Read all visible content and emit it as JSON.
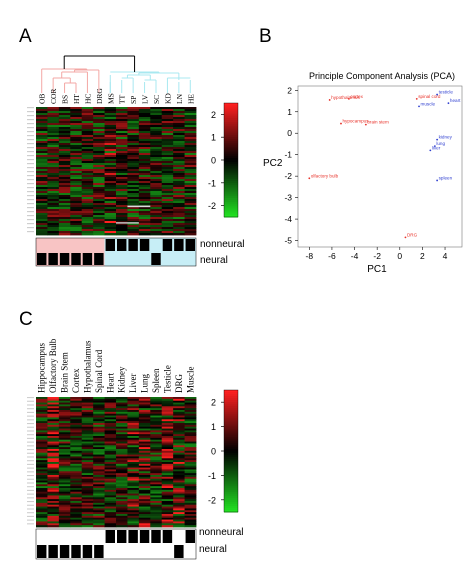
{
  "panels": {
    "a": {
      "letter": "A"
    },
    "b": {
      "letter": "B"
    },
    "c": {
      "letter": "C"
    }
  },
  "panel_a": {
    "columns": [
      "OB",
      "COR",
      "BS",
      "HT",
      "HC",
      "DRG",
      "MS",
      "TT",
      "SP",
      "LV",
      "SC",
      "KD",
      "LN",
      "HE"
    ],
    "colorbar_ticks": [
      "2",
      "1",
      "0",
      "-1",
      "-2"
    ],
    "row_labels": [
      "nonneural",
      "neural"
    ],
    "nonneural_marks": [
      0,
      0,
      0,
      0,
      0,
      0,
      1,
      1,
      1,
      1,
      0,
      1,
      1,
      1
    ],
    "neural_marks": [
      1,
      1,
      1,
      1,
      1,
      1,
      0,
      0,
      0,
      0,
      1,
      0,
      0,
      0
    ]
  },
  "panel_c": {
    "columns": [
      "Hippocampus",
      "Olfactory Bulb",
      "Brain Stem",
      "Cortex",
      "Hypothalamus",
      "Spinal Cord",
      "Heart",
      "Kidney",
      "Liver",
      "Lung",
      "Spleen",
      "Testicle",
      "DRG",
      "Muscle"
    ],
    "colorbar_ticks": [
      "2",
      "1",
      "0",
      "-1",
      "-2"
    ],
    "row_labels": [
      "nonneural",
      "neural"
    ],
    "nonneural_marks": [
      0,
      0,
      0,
      0,
      0,
      0,
      1,
      1,
      1,
      1,
      1,
      1,
      0,
      1
    ],
    "neural_marks": [
      1,
      1,
      1,
      1,
      1,
      1,
      0,
      0,
      0,
      0,
      0,
      0,
      1,
      0
    ]
  },
  "colors": {
    "high": "#ff2020",
    "mid": "#000000",
    "low": "#22e022",
    "pca_neural": "#e8322a",
    "pca_nonneural": "#2f3fd0",
    "tree_neural": "#f3a7a4",
    "tree_nonneural": "#a8e8f0",
    "band_neural": "#f8c4c4",
    "band_nonneural": "#c7eef6"
  },
  "chart_data": {
    "type": "scatter",
    "title": "Principle Component Analysis (PCA)",
    "xlabel": "PC1",
    "ylabel": "PC2",
    "xlim": [
      -9,
      5.5
    ],
    "ylim": [
      -5.3,
      2.2
    ],
    "xticks": [
      -8,
      -6,
      -4,
      -2,
      0,
      2,
      4
    ],
    "yticks": [
      2,
      1,
      0,
      -1,
      -2,
      -3,
      -4,
      -5
    ],
    "series": [
      {
        "group": "neural",
        "points": [
          {
            "label": "hypothalamus",
            "x": -6.2,
            "y": 1.55
          },
          {
            "label": "cortex",
            "x": -4.5,
            "y": 1.6
          },
          {
            "label": "hypocampus",
            "x": -5.2,
            "y": 0.45
          },
          {
            "label": "brain stem",
            "x": -3.0,
            "y": 0.4
          },
          {
            "label": "olfactory bulb",
            "x": -8.0,
            "y": -2.1
          },
          {
            "label": "spinal cord",
            "x": 1.5,
            "y": 1.6
          },
          {
            "label": "DRG",
            "x": 0.5,
            "y": -4.85
          }
        ]
      },
      {
        "group": "nonneural",
        "points": [
          {
            "label": "testicle",
            "x": 3.3,
            "y": 1.8
          },
          {
            "label": "heart",
            "x": 4.3,
            "y": 1.4
          },
          {
            "label": "muscle",
            "x": 1.7,
            "y": 1.25
          },
          {
            "label": "kidney",
            "x": 3.3,
            "y": -0.3
          },
          {
            "label": "lung",
            "x": 3.1,
            "y": -0.6
          },
          {
            "label": "liver",
            "x": 2.7,
            "y": -0.8
          },
          {
            "label": "spleen",
            "x": 3.3,
            "y": -2.2
          }
        ]
      }
    ]
  }
}
